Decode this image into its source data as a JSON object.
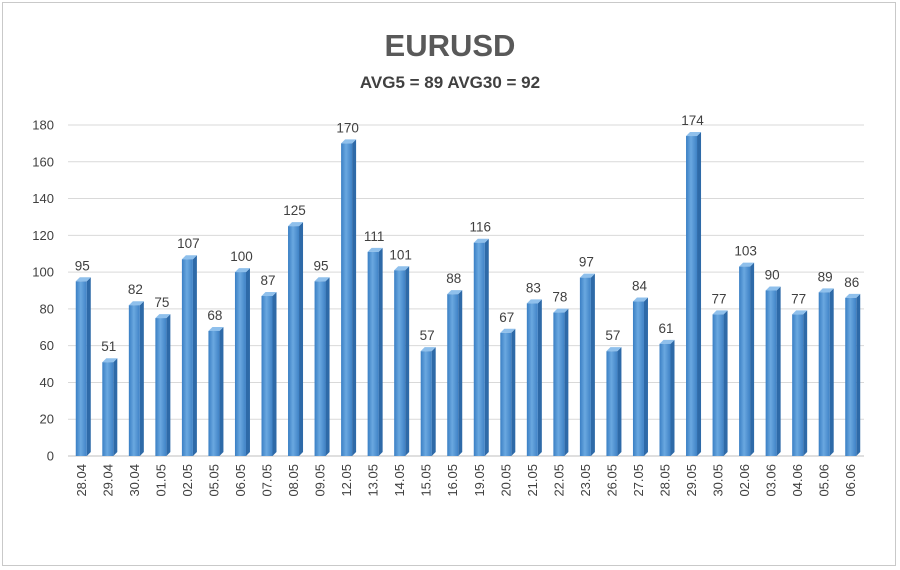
{
  "chart_data": {
    "type": "bar",
    "title": "EURUSD",
    "subtitle": "AVG5 = 89 AVG30 = 92",
    "xlabel": "",
    "ylabel": "",
    "ylim": [
      0,
      180
    ],
    "yticks": [
      0,
      20,
      40,
      60,
      80,
      100,
      120,
      140,
      160,
      180
    ],
    "grid": true,
    "legend": "none",
    "bar_color": "#5b9bd5",
    "categories": [
      "28.04",
      "29.04",
      "30.04",
      "01.05",
      "02.05",
      "05.05",
      "06.05",
      "07.05",
      "08.05",
      "09.05",
      "12.05",
      "13.05",
      "14.05",
      "15.05",
      "16.05",
      "19.05",
      "20.05",
      "21.05",
      "22.05",
      "23.05",
      "26.05",
      "27.05",
      "28.05",
      "29.05",
      "30.05",
      "02.06",
      "03.06",
      "04.06",
      "05.06",
      "06.06"
    ],
    "values": [
      95,
      51,
      82,
      75,
      107,
      68,
      100,
      87,
      125,
      95,
      170,
      111,
      101,
      57,
      88,
      116,
      67,
      83,
      78,
      97,
      57,
      84,
      61,
      174,
      77,
      103,
      90,
      77,
      89,
      86
    ]
  }
}
